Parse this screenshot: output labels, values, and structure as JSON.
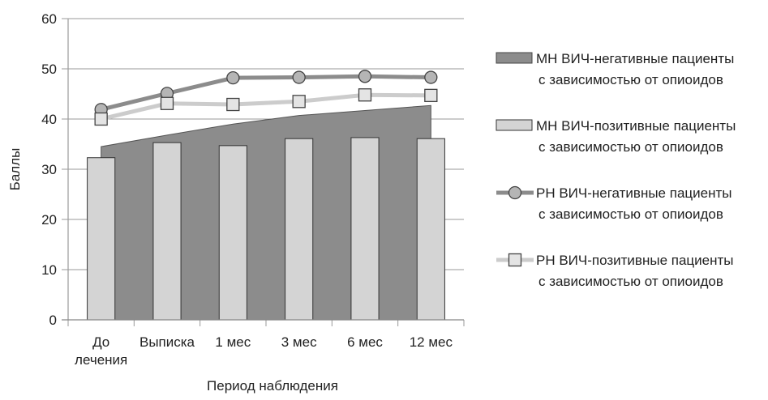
{
  "chart_data": {
    "type": "bar",
    "xlabel": "Период наблюдения",
    "ylabel": "Баллы",
    "ylim": [
      0,
      60
    ],
    "yticks": [
      0,
      10,
      20,
      30,
      40,
      50,
      60
    ],
    "grid": true,
    "legend_position": "right",
    "categories": [
      {
        "lines": [
          "До",
          "лечения"
        ]
      },
      {
        "lines": [
          "Выписка"
        ]
      },
      {
        "lines": [
          "1 мес"
        ]
      },
      {
        "lines": [
          "3 мес"
        ]
      },
      {
        "lines": [
          "6 мес"
        ]
      },
      {
        "lines": [
          "12 мес"
        ]
      }
    ],
    "series": [
      {
        "name": "МН ВИЧ-негативные пациенты с зависимостью от опиоидов",
        "legend_lines": [
          "МН  ВИЧ-негативные пациенты",
          "с зависимостью от опиоидов"
        ],
        "kind": "area",
        "color": "#8c8c8c",
        "values": [
          34.5,
          36.8,
          39.0,
          40.7,
          41.7,
          42.7
        ]
      },
      {
        "name": "МН ВИЧ-позитивные пациенты с зависимостью от опиоидов",
        "legend_lines": [
          "МН  ВИЧ-позитивные пациенты",
          "с зависимостью от опиоидов"
        ],
        "kind": "bar",
        "color": "#d4d4d4",
        "values": [
          32.3,
          35.3,
          34.7,
          36.1,
          36.3,
          36.1
        ]
      },
      {
        "name": "РН ВИЧ-негативные пациенты с зависимостью от опиоидов",
        "legend_lines": [
          "РН  ВИЧ-негативные пациенты",
          "с зависимостью от опиоидов"
        ],
        "kind": "line",
        "marker": "circle",
        "color": "#8c8c8c",
        "values": [
          41.9,
          45.1,
          48.2,
          48.3,
          48.5,
          48.3
        ]
      },
      {
        "name": "РН ВИЧ-позитивные пациенты с зависимостью от опиоидов",
        "legend_lines": [
          "РН  ВИЧ-позитивные пациенты",
          "с зависимостью от опиоидов"
        ],
        "kind": "line",
        "marker": "square",
        "color": "#cccccc",
        "values": [
          40.0,
          43.1,
          42.9,
          43.5,
          44.8,
          44.7
        ]
      }
    ]
  }
}
